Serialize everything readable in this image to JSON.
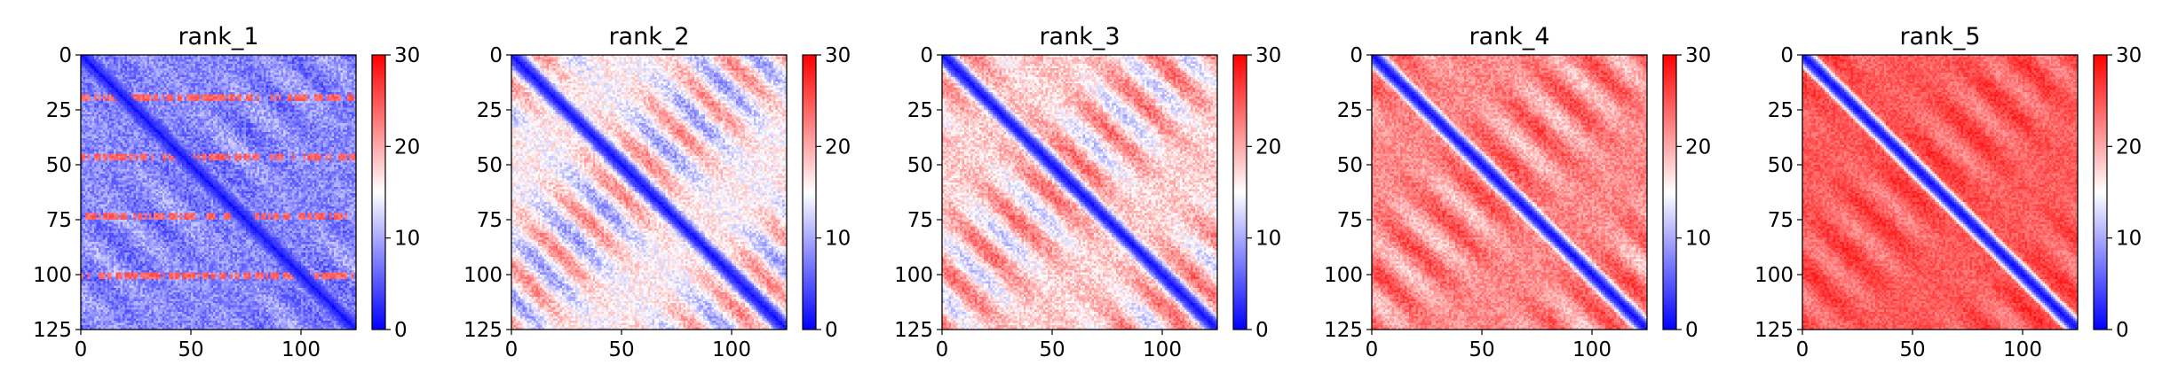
{
  "figure": {
    "colormap": "bwr",
    "colormap_stops": [
      "#0000ff",
      "#ffffff",
      "#ff0000"
    ]
  },
  "chart_data": [
    {
      "type": "heatmap",
      "title": "rank_1",
      "xlim": [
        0,
        125
      ],
      "ylim": [
        0,
        125
      ],
      "y_inverted": true,
      "xticks": [
        0,
        50,
        100
      ],
      "yticks": [
        0,
        25,
        50,
        75,
        100,
        125
      ],
      "colorbar": {
        "min": 0,
        "max": 30,
        "ticks": [
          0,
          10,
          20,
          30
        ]
      },
      "matrix_size": 125,
      "pattern": {
        "diagonal_value": 0,
        "base": 7,
        "off_amp": 3,
        "off_sign": 1,
        "period": 27.5,
        "texture": 3,
        "stripes_at": [
          19,
          46,
          73,
          100
        ],
        "stripe_value": 22
      }
    },
    {
      "type": "heatmap",
      "title": "rank_2",
      "xlim": [
        0,
        125
      ],
      "ylim": [
        0,
        125
      ],
      "y_inverted": true,
      "xticks": [
        0,
        50,
        100
      ],
      "yticks": [
        0,
        25,
        50,
        75,
        100,
        125
      ],
      "colorbar": {
        "min": 0,
        "max": 30,
        "ticks": [
          0,
          10,
          20,
          30
        ]
      },
      "matrix_size": 125,
      "pattern": {
        "diagonal_value": 0,
        "base": 19,
        "off_amp": 10,
        "off_sign": -1,
        "period": 27.5,
        "texture": 3,
        "stripes_at": [],
        "stripe_value": 0
      }
    },
    {
      "type": "heatmap",
      "title": "rank_3",
      "xlim": [
        0,
        125
      ],
      "ylim": [
        0,
        125
      ],
      "y_inverted": true,
      "xticks": [
        0,
        50,
        100
      ],
      "yticks": [
        0,
        25,
        50,
        75,
        100,
        125
      ],
      "colorbar": {
        "min": 0,
        "max": 30,
        "ticks": [
          0,
          10,
          20,
          30
        ]
      },
      "matrix_size": 125,
      "pattern": {
        "diagonal_value": 0,
        "base": 21,
        "off_amp": 9,
        "off_sign": -1,
        "period": 27.5,
        "texture": 3,
        "stripes_at": [],
        "stripe_value": 0
      }
    },
    {
      "type": "heatmap",
      "title": "rank_4",
      "xlim": [
        0,
        125
      ],
      "ylim": [
        0,
        125
      ],
      "y_inverted": true,
      "xticks": [
        0,
        50,
        100
      ],
      "yticks": [
        0,
        25,
        50,
        75,
        100,
        125
      ],
      "colorbar": {
        "min": 0,
        "max": 30,
        "ticks": [
          0,
          10,
          20,
          30
        ]
      },
      "matrix_size": 125,
      "pattern": {
        "diagonal_value": 0,
        "base": 24,
        "off_amp": 6,
        "off_sign": -1,
        "period": 27.5,
        "texture": 2.5,
        "stripes_at": [],
        "stripe_value": 0
      }
    },
    {
      "type": "heatmap",
      "title": "rank_5",
      "xlim": [
        0,
        125
      ],
      "ylim": [
        0,
        125
      ],
      "y_inverted": true,
      "xticks": [
        0,
        50,
        100
      ],
      "yticks": [
        0,
        25,
        50,
        75,
        100,
        125
      ],
      "colorbar": {
        "min": 0,
        "max": 30,
        "ticks": [
          0,
          10,
          20,
          30
        ]
      },
      "matrix_size": 125,
      "pattern": {
        "diagonal_value": 0,
        "base": 26,
        "off_amp": 4,
        "off_sign": -1,
        "period": 27.5,
        "texture": 2,
        "stripes_at": [],
        "stripe_value": 0
      }
    }
  ]
}
